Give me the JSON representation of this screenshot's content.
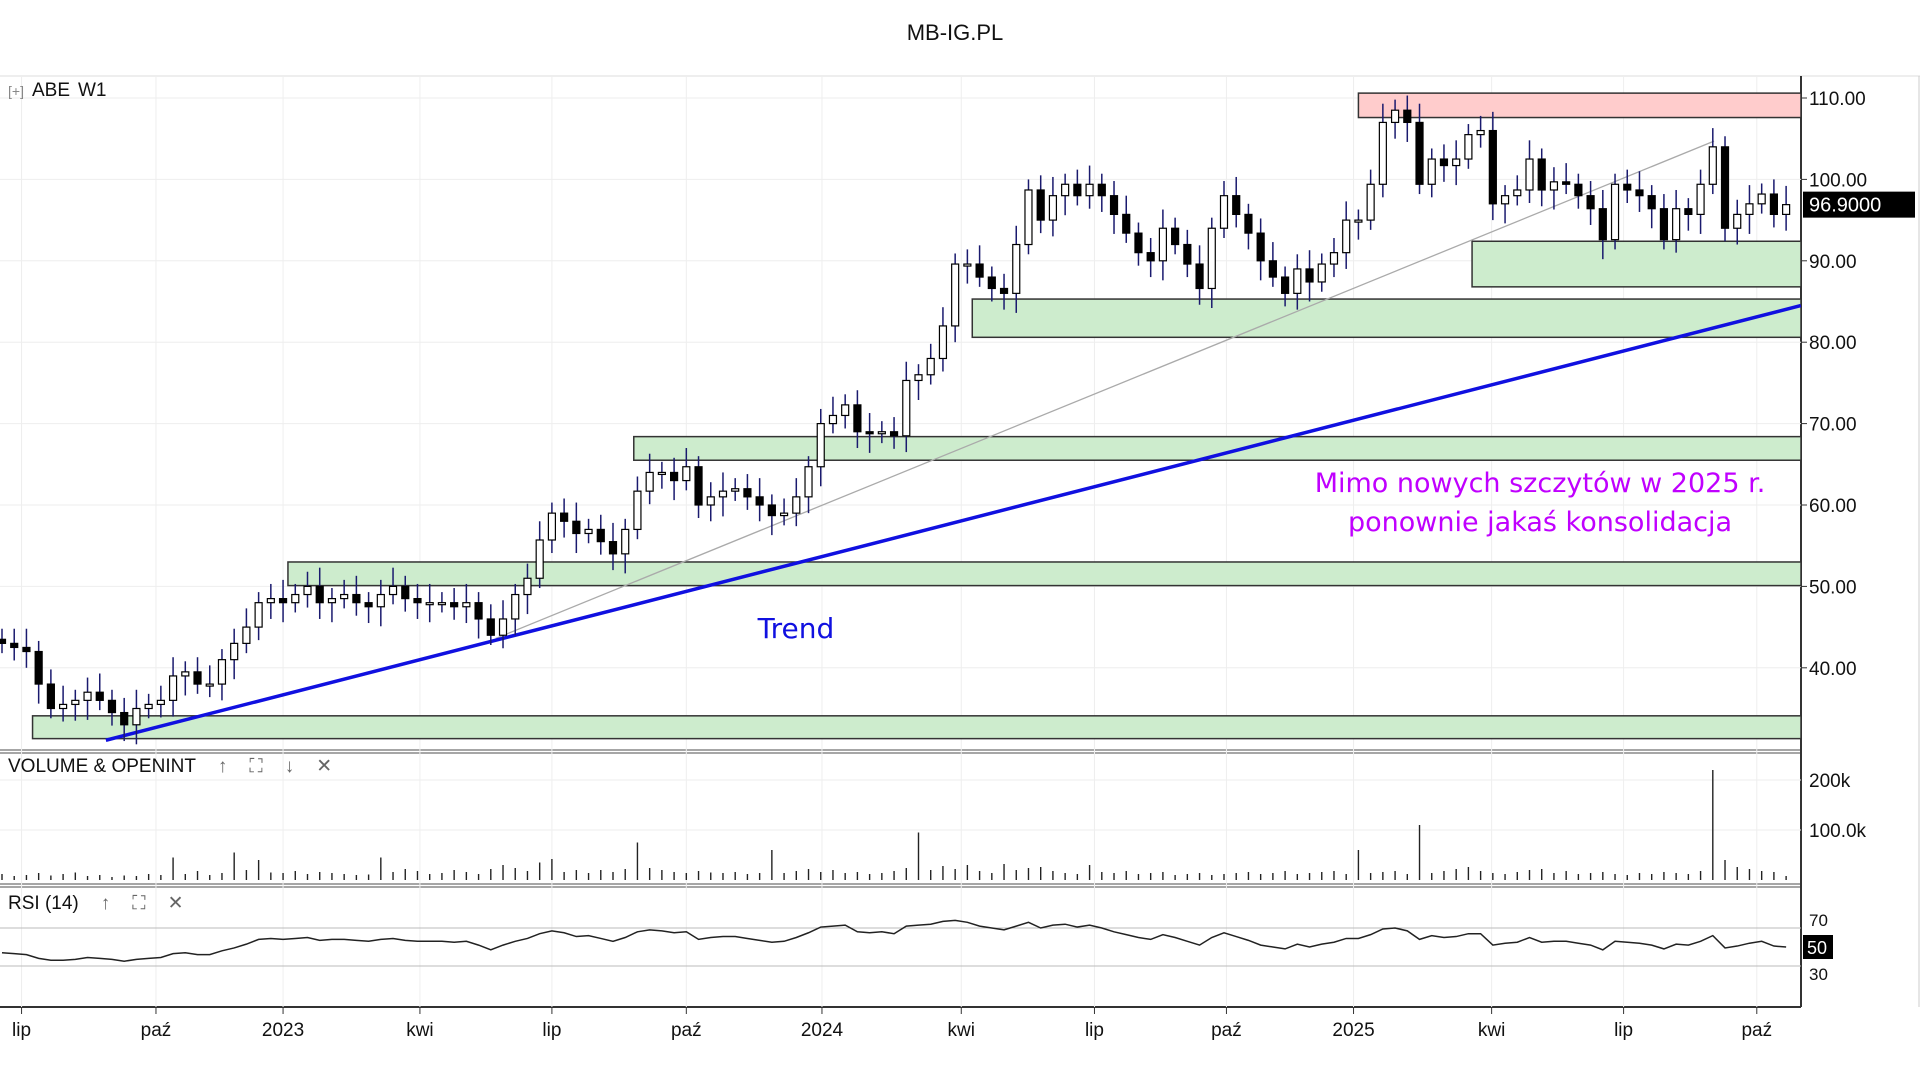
{
  "title": "MB-IG.PL",
  "symbol": "ABE",
  "interval": "W1",
  "expand_icon": "[+]",
  "volume_pane": {
    "label": "VOLUME & OPENINT",
    "icons": [
      "↑",
      "⛶",
      "↓",
      "✕"
    ],
    "ticks": [
      {
        "v": 200,
        "label": "200k"
      },
      {
        "v": 100,
        "label": "100.0k"
      }
    ]
  },
  "rsi_pane": {
    "label": "RSI (14)",
    "icons": [
      "↑",
      "⛶",
      "✕"
    ],
    "ticks": [
      {
        "v": 70,
        "label": "70"
      },
      {
        "v": 30,
        "label": "30"
      }
    ],
    "current": "50"
  },
  "annotations": {
    "trend": "Trend",
    "line1": "Mimo nowych szczytów w 2025 r.",
    "line2": "ponownie jakaś konsolidacja"
  },
  "colors": {
    "trend": "#1010e0",
    "note": "#c000ff",
    "zone_green": "#cdeccd",
    "zone_red": "#ffcccc"
  },
  "chart_data": {
    "type": "candlestick",
    "title": "MB-IG.PL",
    "current_price_label": "96.9000",
    "ylim": [
      27,
      112
    ],
    "y_ticks": [
      110,
      100,
      90,
      80,
      70,
      60,
      50,
      40
    ],
    "x_ticks": [
      {
        "i": 1.6,
        "label": "lip"
      },
      {
        "i": 12.6,
        "label": "paź"
      },
      {
        "i": 23,
        "label": "2023"
      },
      {
        "i": 34.2,
        "label": "kwi"
      },
      {
        "i": 45,
        "label": "lip"
      },
      {
        "i": 56,
        "label": "paź"
      },
      {
        "i": 67.1,
        "label": "2024"
      },
      {
        "i": 78.5,
        "label": "kwi"
      },
      {
        "i": 89.4,
        "label": "lip"
      },
      {
        "i": 100.2,
        "label": "paź"
      },
      {
        "i": 110.6,
        "label": "2025"
      },
      {
        "i": 121.9,
        "label": "kwi"
      },
      {
        "i": 132.7,
        "label": "lip"
      },
      {
        "i": 143.6,
        "label": "paź"
      }
    ],
    "close": [
      43,
      42.5,
      42,
      38,
      35,
      35.5,
      36,
      37,
      36,
      34.5,
      33,
      35,
      35.5,
      36,
      39,
      39.5,
      38,
      38,
      41,
      43,
      45,
      48,
      48.5,
      48,
      49,
      50,
      48,
      48.5,
      49,
      48,
      47.5,
      49,
      50,
      48.5,
      48,
      48,
      48,
      47.5,
      48,
      46,
      44,
      46,
      49,
      51,
      55.7,
      59,
      58,
      56.5,
      57,
      55.5,
      54,
      57,
      61.7,
      64,
      64,
      63,
      64.7,
      60,
      61,
      61.7,
      62,
      61,
      60,
      58.7,
      59,
      61,
      64.7,
      70,
      71,
      72.3,
      69,
      68.8,
      69,
      68.5,
      75.3,
      76,
      78,
      82,
      89.6,
      89.6,
      88,
      86.6,
      86,
      92,
      98.7,
      95,
      98,
      99.4,
      98,
      99.4,
      98,
      95.7,
      93.4,
      91,
      90,
      94,
      92,
      89.6,
      86.6,
      94,
      98,
      95.7,
      93.4,
      90,
      88,
      86,
      89,
      87.4,
      89.6,
      91,
      95,
      95,
      99.4,
      107,
      108.5,
      107,
      99.4,
      102.5,
      101.7,
      102.5,
      105.5,
      106,
      97,
      98,
      98.7,
      102.5,
      98.7,
      99.7,
      99.4,
      98,
      96.4,
      92.6,
      99.4,
      98.7,
      98,
      96.4,
      92.6,
      96.4,
      95.7,
      99.4,
      104,
      94,
      95.7,
      97,
      98.2,
      95.7,
      96.9
    ],
    "volume_k": [
      12,
      8,
      10,
      14,
      9,
      12,
      15,
      8,
      10,
      6,
      9,
      8,
      12,
      10,
      45,
      12,
      18,
      10,
      14,
      55,
      20,
      40,
      15,
      14,
      18,
      12,
      16,
      14,
      12,
      10,
      11,
      45,
      16,
      22,
      18,
      12,
      14,
      20,
      16,
      12,
      22,
      30,
      24,
      18,
      35,
      42,
      16,
      20,
      14,
      20,
      16,
      22,
      75,
      24,
      20,
      16,
      14,
      18,
      15,
      14,
      16,
      12,
      14,
      60,
      14,
      18,
      22,
      16,
      20,
      14,
      16,
      12,
      14,
      18,
      24,
      95,
      20,
      28,
      22,
      30,
      18,
      14,
      32,
      20,
      24,
      26,
      18,
      14,
      12,
      30,
      16,
      14,
      18,
      12,
      14,
      16,
      10,
      12,
      14,
      10,
      12,
      14,
      16,
      12,
      14,
      18,
      12,
      14,
      16,
      18,
      12,
      60,
      14,
      16,
      18,
      12,
      110,
      14,
      18,
      22,
      26,
      18,
      14,
      12,
      16,
      20,
      22,
      14,
      18,
      12,
      14,
      16,
      12,
      10,
      14,
      12,
      16,
      14,
      12,
      18,
      220,
      40,
      26,
      22,
      18,
      16,
      8
    ],
    "rsi": [
      44,
      43,
      42,
      38,
      36,
      36,
      37,
      39,
      38,
      37,
      35,
      37,
      38,
      39,
      43,
      44,
      42,
      42,
      46,
      49,
      53,
      58,
      59,
      58,
      59,
      60,
      57,
      58,
      58,
      57,
      56,
      58,
      59,
      57,
      56,
      56,
      56,
      55,
      56,
      52,
      47,
      52,
      56,
      59,
      64,
      67,
      65,
      61,
      62,
      59,
      56,
      60,
      66,
      68,
      67,
      65,
      66,
      58,
      60,
      61,
      61,
      59,
      57,
      55,
      56,
      60,
      65,
      71,
      72,
      73,
      66,
      65,
      66,
      64,
      72,
      73,
      74,
      77,
      78,
      76,
      72,
      70,
      68,
      72,
      76,
      70,
      73,
      74,
      71,
      73,
      70,
      66,
      63,
      60,
      58,
      63,
      60,
      56,
      52,
      60,
      65,
      61,
      57,
      52,
      50,
      48,
      53,
      50,
      53,
      55,
      59,
      59,
      63,
      69,
      70,
      67,
      58,
      62,
      60,
      61,
      64,
      64,
      52,
      54,
      55,
      60,
      55,
      56,
      56,
      54,
      52,
      47,
      56,
      55,
      54,
      52,
      48,
      53,
      52,
      56,
      62,
      49,
      51,
      54,
      56,
      51,
      50
    ],
    "zones": [
      {
        "kind": "resistance",
        "from_i": 111,
        "low": 107.6,
        "high": 110.6
      },
      {
        "kind": "support",
        "from_i": 120.3,
        "low": 86.8,
        "high": 92.4
      },
      {
        "kind": "support",
        "from_i": 79.4,
        "low": 80.6,
        "high": 85.3
      },
      {
        "kind": "support",
        "from_i": 51.7,
        "low": 65.5,
        "high": 68.4
      },
      {
        "kind": "support",
        "from_i": 23.4,
        "low": 50.1,
        "high": 53
      },
      {
        "kind": "support",
        "from_i": 2.5,
        "low": 31.3,
        "high": 34.1
      }
    ],
    "trendline": {
      "from": {
        "i": 8.5,
        "price": 31.1
      },
      "to": {
        "i": 147.2,
        "price": 84.5
      }
    },
    "thin_line": {
      "from": {
        "i": 40.4,
        "price": 43.6
      },
      "to": {
        "i": 140.1,
        "price": 104.7
      }
    }
  }
}
